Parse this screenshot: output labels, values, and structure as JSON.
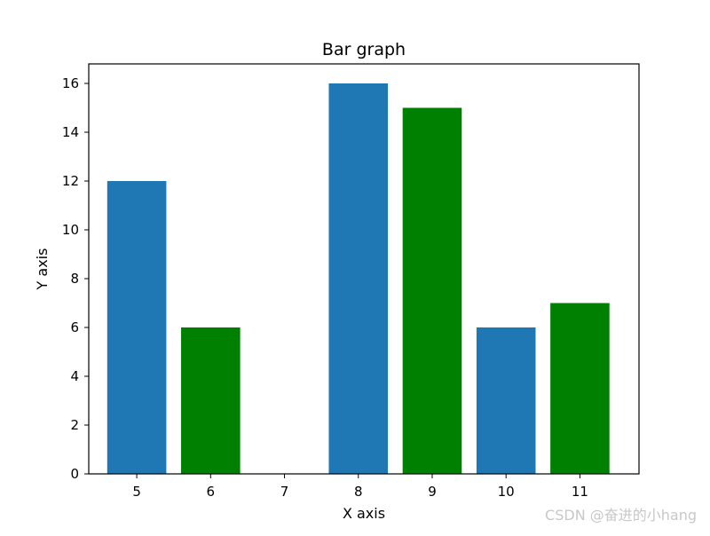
{
  "chart_data": {
    "type": "bar",
    "title": "Bar graph",
    "xlabel": "X axis",
    "ylabel": "Y axis",
    "x_ticks": [
      "5",
      "6",
      "7",
      "8",
      "9",
      "10",
      "11"
    ],
    "y_ticks": [
      "0",
      "2",
      "4",
      "6",
      "8",
      "10",
      "12",
      "14",
      "16"
    ],
    "xlim": [
      4.35,
      11.8
    ],
    "ylim": [
      0,
      16.8
    ],
    "grid": false,
    "series": [
      {
        "color": "#1f77b4",
        "points": [
          {
            "x": 5,
            "y": 12
          },
          {
            "x": 8,
            "y": 16
          },
          {
            "x": 10,
            "y": 6
          }
        ]
      },
      {
        "color": "#008000",
        "points": [
          {
            "x": 6,
            "y": 6
          },
          {
            "x": 9,
            "y": 15
          },
          {
            "x": 11,
            "y": 7
          }
        ]
      }
    ]
  },
  "watermark": "CSDN @奋进的小hang"
}
